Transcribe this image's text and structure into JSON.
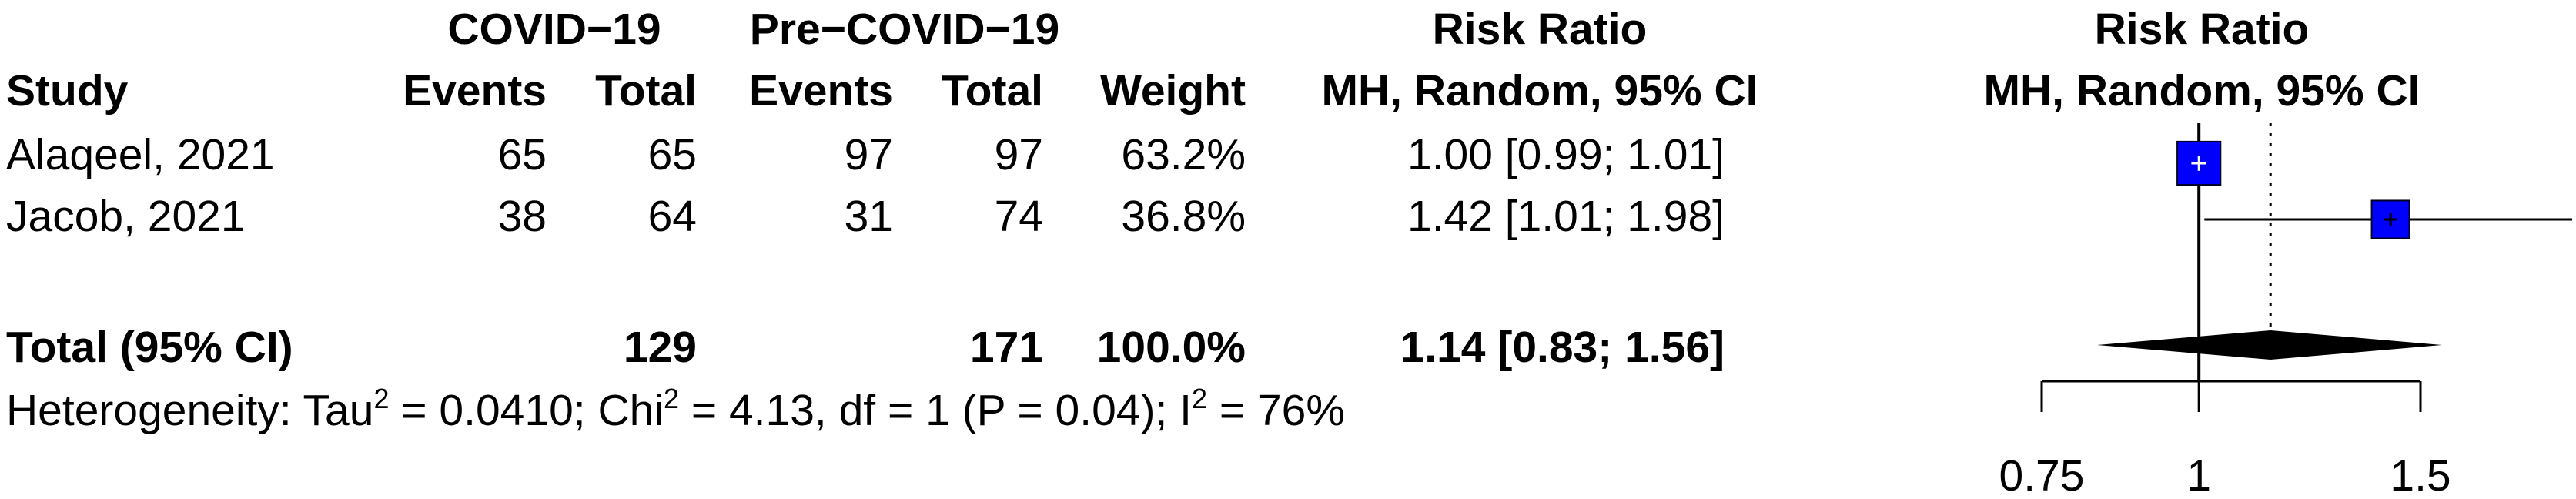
{
  "headers": {
    "group1": "COVID−19",
    "group2": "Pre−COVID−19",
    "effect_top": "Risk Ratio",
    "study": "Study",
    "events1": "Events",
    "total1": "Total",
    "events2": "Events",
    "total2": "Total",
    "weight": "Weight",
    "effect_bottom": "MH, Random, 95% CI",
    "plot_top": "Risk Ratio",
    "plot_bottom": "MH, Random, 95% CI"
  },
  "studies": [
    {
      "name": "Alaqeel, 2021",
      "events1": "65",
      "total1": "65",
      "events2": "97",
      "total2": "97",
      "weight": "63.2%",
      "ci_text": "1.00 [0.99; 1.01]"
    },
    {
      "name": "Jacob, 2021",
      "events1": "38",
      "total1": "64",
      "events2": "31",
      "total2": "74",
      "weight": "36.8%",
      "ci_text": "1.42 [1.01; 1.98]"
    }
  ],
  "total": {
    "label": "Total (95% CI)",
    "total1": "129",
    "total2": "171",
    "weight": "100.0%",
    "ci_text": "1.14 [0.83; 1.56]"
  },
  "heterogeneity": {
    "prefix": "Heterogeneity: Tau",
    "tau_sup": "2",
    "tau_val": " = 0.0410; Chi",
    "chi_sup": "2",
    "chi_val": " = 4.13, df = 1 (P = 0.04); I",
    "i_sup": "2",
    "i_val": " = 76%"
  },
  "chart_data": {
    "type": "forest",
    "scale": "log",
    "xlim": [
      0.75,
      1.5
    ],
    "xticks": [
      0.75,
      1,
      1.5
    ],
    "tick_labels": [
      "0.75",
      "1",
      "1.5"
    ],
    "null_value": 1,
    "pooled_reference": 1.14,
    "colors": {
      "study_box": "#0000ff",
      "diamond": "#000000",
      "line": "#000000"
    },
    "studies": [
      {
        "name": "Alaqeel, 2021",
        "estimate": 1.0,
        "lower": 0.99,
        "upper": 1.01,
        "weight": 63.2
      },
      {
        "name": "Jacob, 2021",
        "estimate": 1.42,
        "lower": 1.01,
        "upper": 1.98,
        "weight": 36.8
      }
    ],
    "pooled": {
      "estimate": 1.14,
      "lower": 0.83,
      "upper": 1.56
    }
  }
}
